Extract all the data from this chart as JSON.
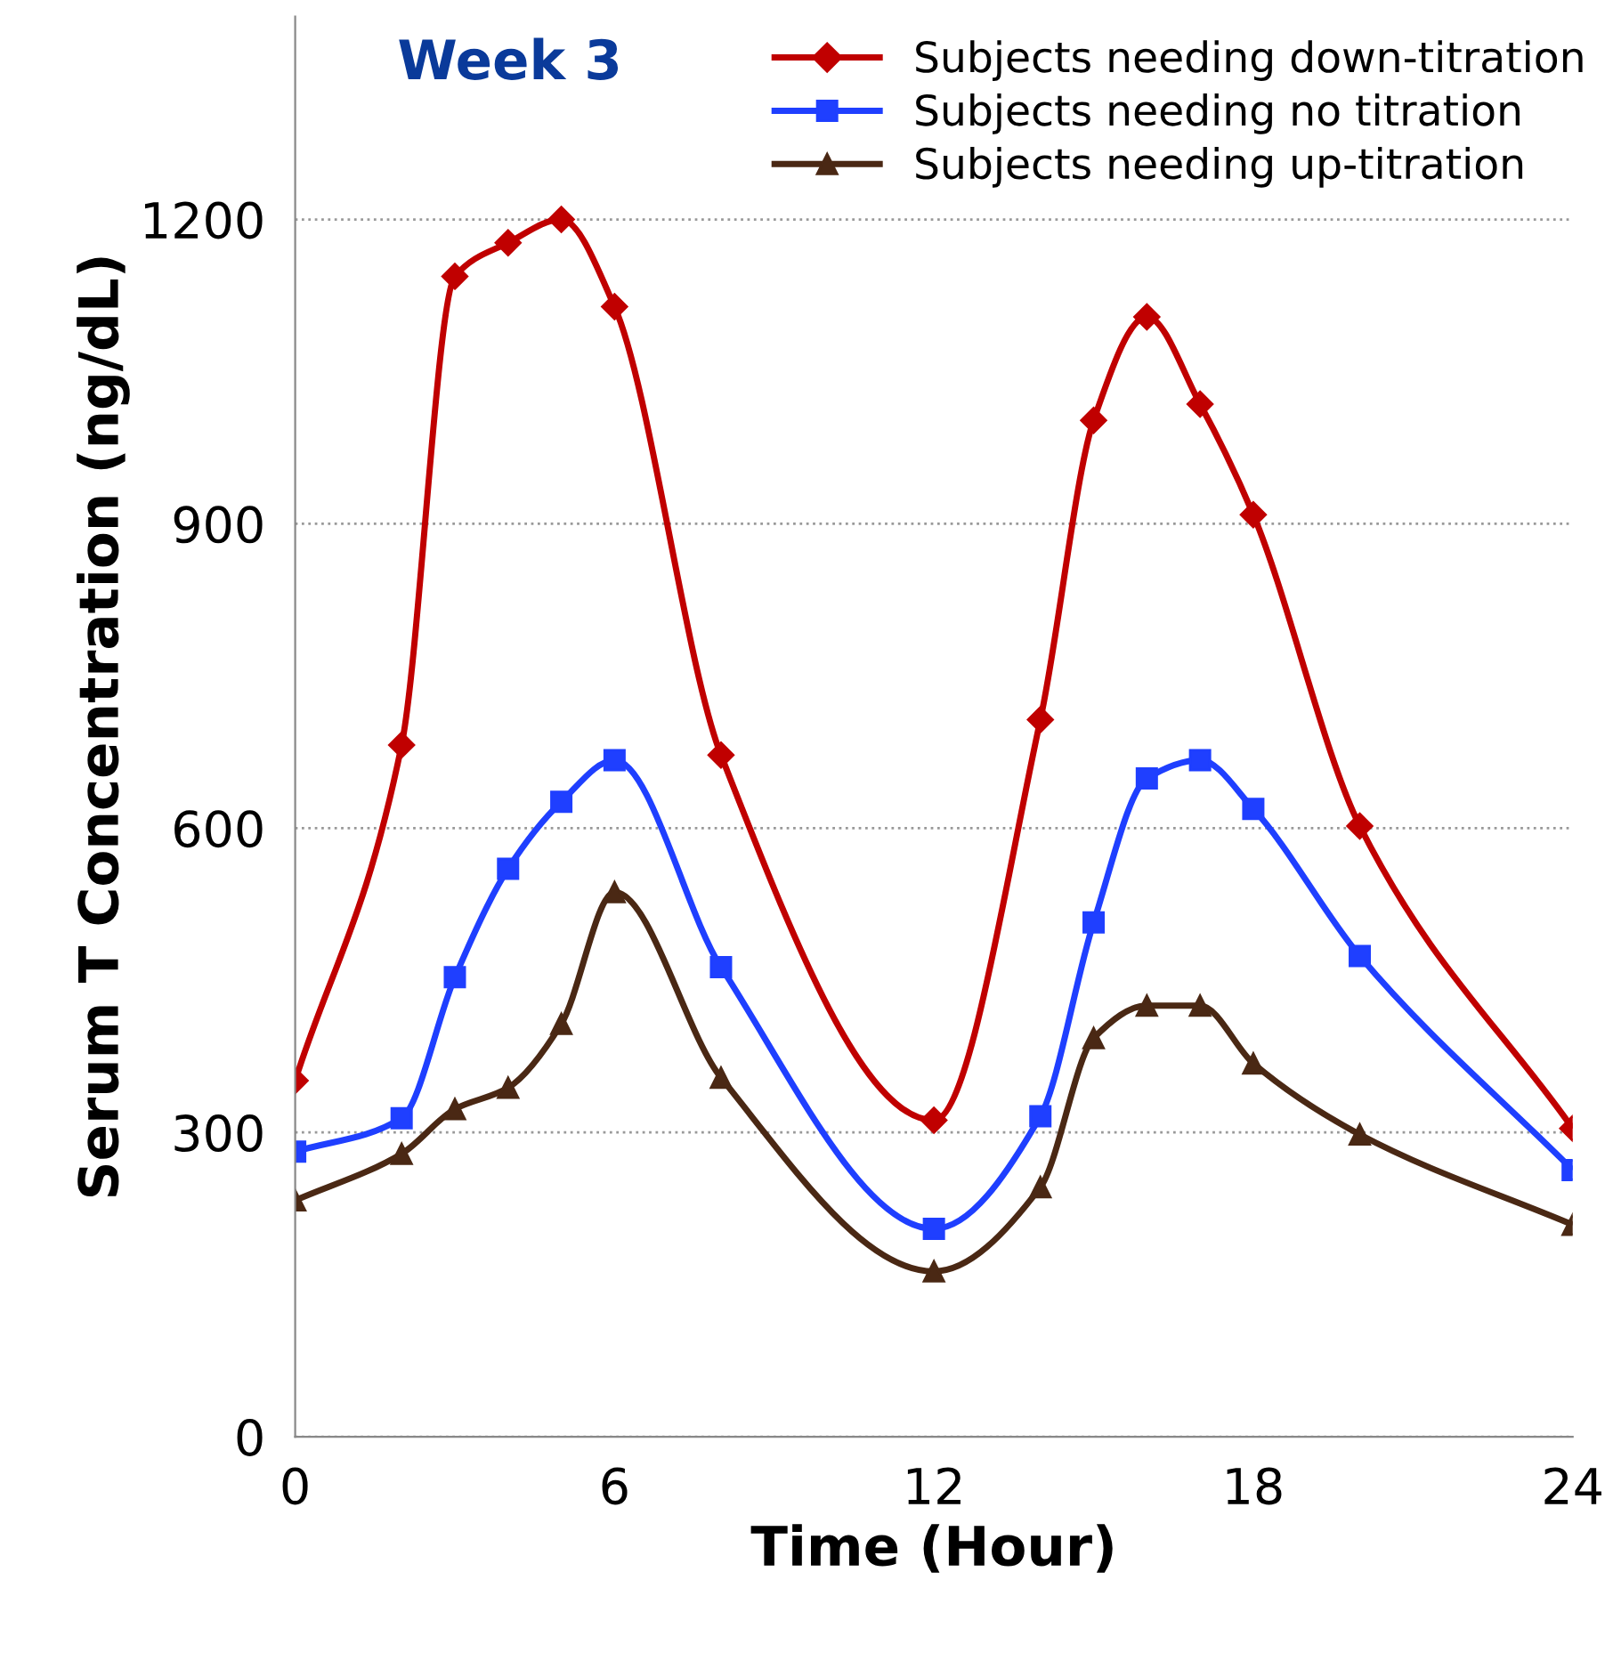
{
  "chart_data": {
    "type": "line",
    "title": "Week 3",
    "xlabel": "Time (Hour)",
    "ylabel": "Serum T Concentration (ng/dL)",
    "x": [
      0,
      2,
      3,
      4,
      5,
      6,
      8,
      12,
      14,
      15,
      16,
      17,
      18,
      20,
      24
    ],
    "series": [
      {
        "name": "Subjects needing down-titration",
        "color": "#c00000",
        "marker": "diamond",
        "values": [
          351,
          682,
          1144,
          1177,
          1200,
          1114,
          672,
          312,
          707,
          1002,
          1104,
          1018,
          909,
          602,
          304
        ]
      },
      {
        "name": "Subjects needing no titration",
        "color": "#1f3fff",
        "marker": "square",
        "values": [
          281,
          314,
          453,
          560,
          626,
          667,
          463,
          205,
          316,
          507,
          649,
          667,
          619,
          474,
          263
        ]
      },
      {
        "name": "Subjects needing up-titration",
        "color": "#4a2814",
        "marker": "triangle",
        "values": [
          233,
          279,
          323,
          344,
          407,
          537,
          354,
          163,
          246,
          393,
          425,
          425,
          368,
          298,
          209
        ]
      }
    ],
    "xlim": [
      0,
      24
    ],
    "xticks": [
      0,
      6,
      12,
      18,
      24
    ],
    "ylim": [
      0,
      1400
    ],
    "yticks": [
      0,
      300,
      600,
      900,
      1200
    ],
    "grid": "y",
    "legend": "top right",
    "line_style": "solid"
  }
}
